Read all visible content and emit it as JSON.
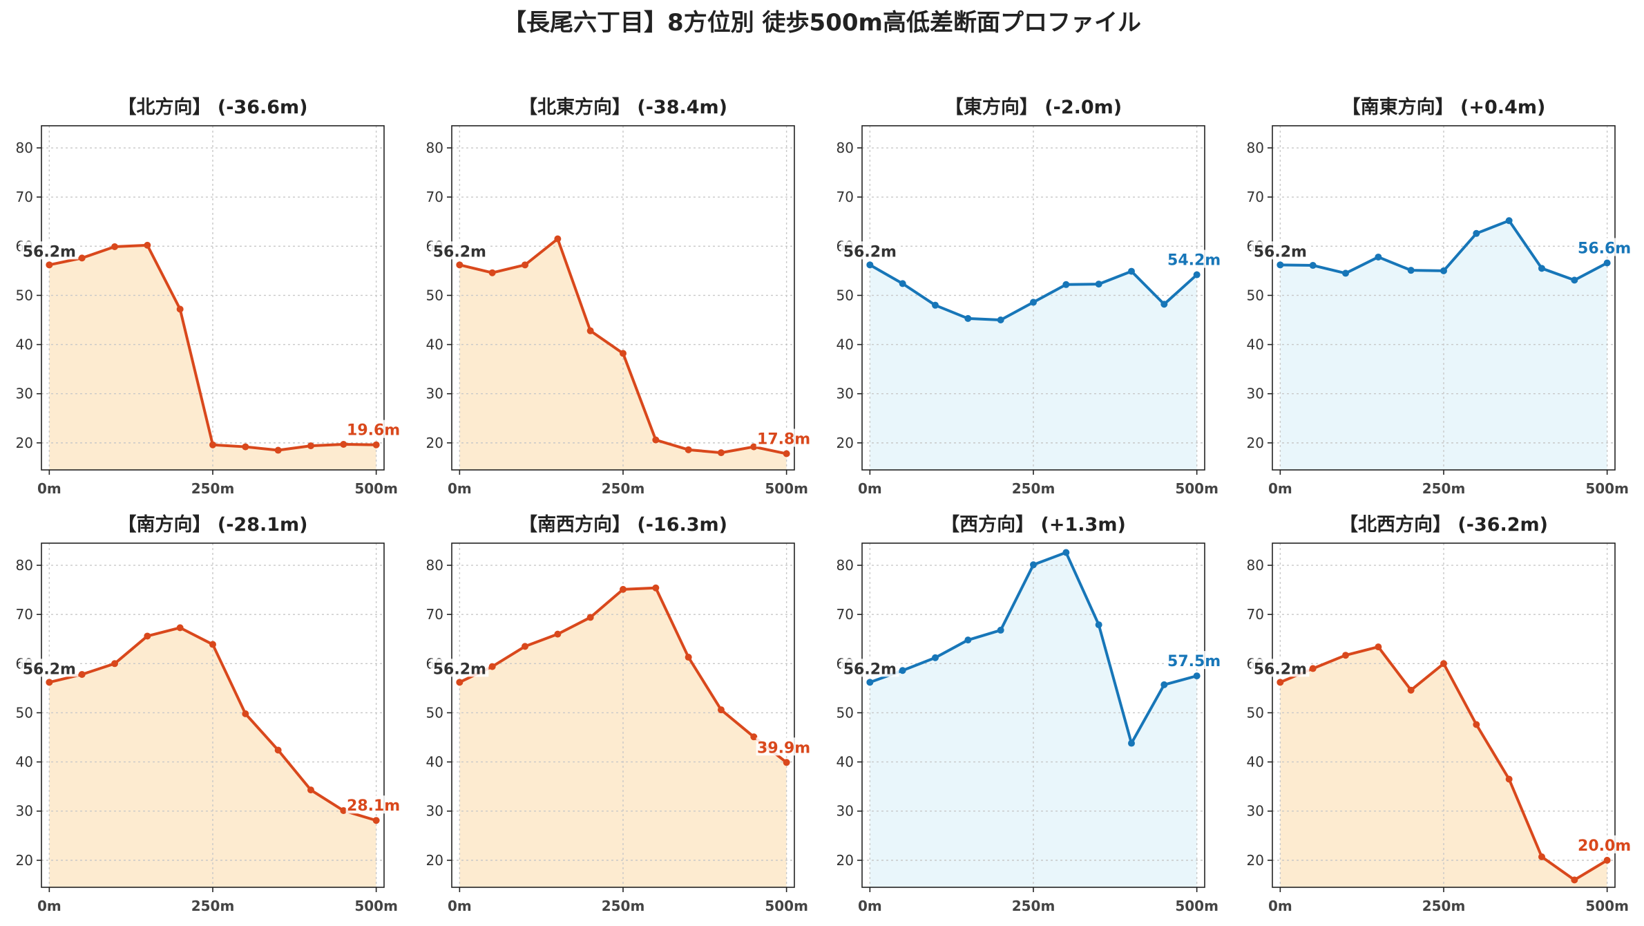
{
  "title": "【長尾六丁目】8方位別 徒歩500m高低差断面プロファイル",
  "colors": {
    "down_line": "#d9481c",
    "down_fill": "#fdebd0",
    "up_line": "#1776b8",
    "up_fill": "#e9f6fb",
    "start_label": "#333333"
  },
  "chart_data": [
    {
      "type": "area",
      "title": "【北方向】 (-36.6m)",
      "trend": "down",
      "x": [
        0,
        50,
        100,
        150,
        200,
        250,
        300,
        350,
        400,
        450,
        500
      ],
      "y": [
        56.2,
        57.6,
        59.9,
        60.2,
        47.2,
        19.6,
        19.2,
        18.5,
        19.4,
        19.7,
        19.6
      ],
      "xticks": [
        0,
        250,
        500
      ],
      "xticklabels": [
        "0m",
        "250m",
        "500m"
      ],
      "yticks": [
        20,
        30,
        40,
        50,
        60,
        70,
        80
      ],
      "ylim": [
        14.5,
        84.5
      ],
      "xlim": [
        -12,
        512
      ],
      "start_label": "56.2m",
      "end_label": "19.6m",
      "grid": true
    },
    {
      "type": "area",
      "title": "【北東方向】 (-38.4m)",
      "trend": "down",
      "x": [
        0,
        50,
        100,
        150,
        200,
        250,
        300,
        350,
        400,
        450,
        500
      ],
      "y": [
        56.2,
        54.6,
        56.2,
        61.5,
        42.8,
        38.2,
        20.6,
        18.6,
        18.0,
        19.2,
        17.8
      ],
      "xticks": [
        0,
        250,
        500
      ],
      "xticklabels": [
        "0m",
        "250m",
        "500m"
      ],
      "yticks": [
        20,
        30,
        40,
        50,
        60,
        70,
        80
      ],
      "ylim": [
        14.5,
        84.5
      ],
      "xlim": [
        -12,
        512
      ],
      "start_label": "56.2m",
      "end_label": "17.8m",
      "grid": true
    },
    {
      "type": "area",
      "title": "【東方向】 (-2.0m)",
      "trend": "up",
      "x": [
        0,
        50,
        100,
        150,
        200,
        250,
        300,
        350,
        400,
        450,
        500
      ],
      "y": [
        56.2,
        52.4,
        48.0,
        45.3,
        45.0,
        48.6,
        52.2,
        52.3,
        54.9,
        48.2,
        54.2
      ],
      "xticks": [
        0,
        250,
        500
      ],
      "xticklabels": [
        "0m",
        "250m",
        "500m"
      ],
      "yticks": [
        20,
        30,
        40,
        50,
        60,
        70,
        80
      ],
      "ylim": [
        14.5,
        84.5
      ],
      "xlim": [
        -12,
        512
      ],
      "start_label": "56.2m",
      "end_label": "54.2m",
      "grid": true
    },
    {
      "type": "area",
      "title": "【南東方向】 (+0.4m)",
      "trend": "up",
      "x": [
        0,
        50,
        100,
        150,
        200,
        250,
        300,
        350,
        400,
        450,
        500
      ],
      "y": [
        56.2,
        56.1,
        54.5,
        57.8,
        55.1,
        55.0,
        62.6,
        65.2,
        55.5,
        53.1,
        56.6
      ],
      "xticks": [
        0,
        250,
        500
      ],
      "xticklabels": [
        "0m",
        "250m",
        "500m"
      ],
      "yticks": [
        20,
        30,
        40,
        50,
        60,
        70,
        80
      ],
      "ylim": [
        14.5,
        84.5
      ],
      "xlim": [
        -12,
        512
      ],
      "start_label": "56.2m",
      "end_label": "56.6m",
      "grid": true
    },
    {
      "type": "area",
      "title": "【南方向】 (-28.1m)",
      "trend": "down",
      "x": [
        0,
        50,
        100,
        150,
        200,
        250,
        300,
        350,
        400,
        450,
        500
      ],
      "y": [
        56.2,
        57.8,
        60.0,
        65.6,
        67.3,
        63.9,
        49.8,
        42.4,
        34.3,
        30.1,
        28.1
      ],
      "xticks": [
        0,
        250,
        500
      ],
      "xticklabels": [
        "0m",
        "250m",
        "500m"
      ],
      "yticks": [
        20,
        30,
        40,
        50,
        60,
        70,
        80
      ],
      "ylim": [
        14.5,
        84.5
      ],
      "xlim": [
        -12,
        512
      ],
      "start_label": "56.2m",
      "end_label": "28.1m",
      "grid": true
    },
    {
      "type": "area",
      "title": "【南西方向】 (-16.3m)",
      "trend": "down",
      "x": [
        0,
        50,
        100,
        150,
        200,
        250,
        300,
        350,
        400,
        450,
        500
      ],
      "y": [
        56.2,
        59.4,
        63.5,
        66.0,
        69.4,
        75.1,
        75.4,
        61.3,
        50.6,
        45.1,
        39.9
      ],
      "xticks": [
        0,
        250,
        500
      ],
      "xticklabels": [
        "0m",
        "250m",
        "500m"
      ],
      "yticks": [
        20,
        30,
        40,
        50,
        60,
        70,
        80
      ],
      "ylim": [
        14.5,
        84.5
      ],
      "xlim": [
        -12,
        512
      ],
      "start_label": "56.2m",
      "end_label": "39.9m",
      "grid": true
    },
    {
      "type": "area",
      "title": "【西方向】 (+1.3m)",
      "trend": "up",
      "x": [
        0,
        50,
        100,
        150,
        200,
        250,
        300,
        350,
        400,
        450,
        500
      ],
      "y": [
        56.2,
        58.6,
        61.2,
        64.8,
        66.8,
        80.1,
        82.6,
        67.9,
        43.8,
        55.7,
        57.5
      ],
      "xticks": [
        0,
        250,
        500
      ],
      "xticklabels": [
        "0m",
        "250m",
        "500m"
      ],
      "yticks": [
        20,
        30,
        40,
        50,
        60,
        70,
        80
      ],
      "ylim": [
        14.5,
        84.5
      ],
      "xlim": [
        -12,
        512
      ],
      "start_label": "56.2m",
      "end_label": "57.5m",
      "grid": true
    },
    {
      "type": "area",
      "title": "【北西方向】 (-36.2m)",
      "trend": "down",
      "x": [
        0,
        50,
        100,
        150,
        200,
        250,
        300,
        350,
        400,
        450,
        500
      ],
      "y": [
        56.2,
        59.0,
        61.7,
        63.4,
        54.6,
        60.0,
        47.6,
        36.5,
        20.7,
        16.0,
        20.0
      ],
      "xticks": [
        0,
        250,
        500
      ],
      "xticklabels": [
        "0m",
        "250m",
        "500m"
      ],
      "yticks": [
        20,
        30,
        40,
        50,
        60,
        70,
        80
      ],
      "ylim": [
        14.5,
        84.5
      ],
      "xlim": [
        -12,
        512
      ],
      "start_label": "56.2m",
      "end_label": "20.0m",
      "grid": true
    }
  ]
}
